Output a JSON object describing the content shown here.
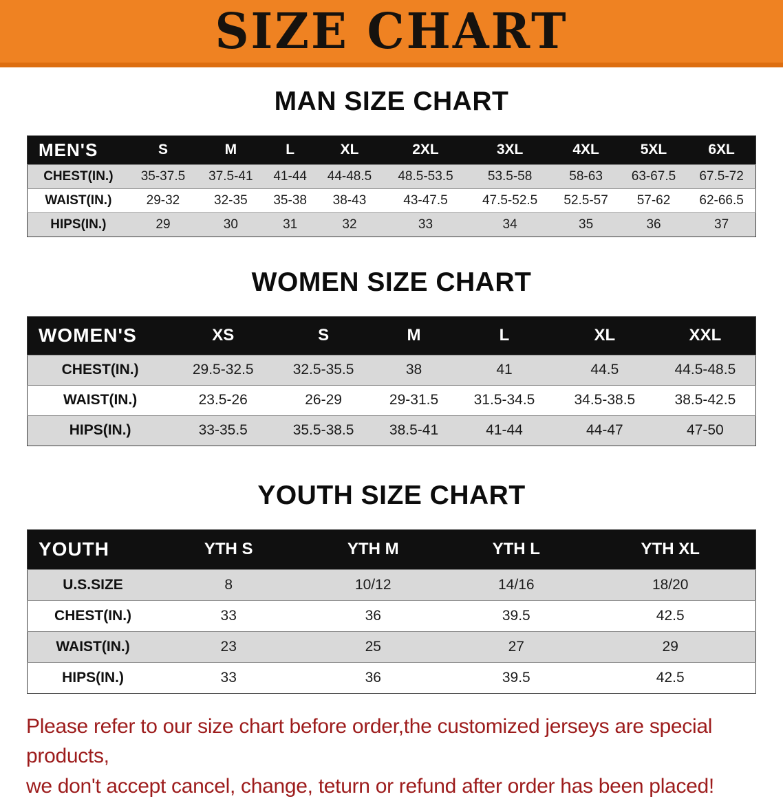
{
  "banner": {
    "title": "SIZE CHART"
  },
  "colors": {
    "banner_bg": "#ef8222",
    "banner_edge": "#dd6e10",
    "table_header_bg": "#101010",
    "row_stripe": "#d9d9d9",
    "notice_text": "#9d1c1c"
  },
  "sections": [
    {
      "id": "men",
      "title": "MAN SIZE CHART",
      "table": {
        "header": [
          "MEN'S",
          "S",
          "M",
          "L",
          "XL",
          "2XL",
          "3XL",
          "4XL",
          "5XL",
          "6XL"
        ],
        "rows": [
          [
            "CHEST(IN.)",
            "35-37.5",
            "37.5-41",
            "41-44",
            "44-48.5",
            "48.5-53.5",
            "53.5-58",
            "58-63",
            "63-67.5",
            "67.5-72"
          ],
          [
            "WAIST(IN.)",
            "29-32",
            "32-35",
            "35-38",
            "38-43",
            "43-47.5",
            "47.5-52.5",
            "52.5-57",
            "57-62",
            "62-66.5"
          ],
          [
            "HIPS(IN.)",
            "29",
            "30",
            "31",
            "32",
            "33",
            "34",
            "35",
            "36",
            "37"
          ]
        ]
      }
    },
    {
      "id": "women",
      "title": "WOMEN SIZE CHART",
      "table": {
        "header": [
          "WOMEN'S",
          "XS",
          "S",
          "M",
          "L",
          "XL",
          "XXL"
        ],
        "rows": [
          [
            "CHEST(IN.)",
            "29.5-32.5",
            "32.5-35.5",
            "38",
            "41",
            "44.5",
            "44.5-48.5"
          ],
          [
            "WAIST(IN.)",
            "23.5-26",
            "26-29",
            "29-31.5",
            "31.5-34.5",
            "34.5-38.5",
            "38.5-42.5"
          ],
          [
            "HIPS(IN.)",
            "33-35.5",
            "35.5-38.5",
            "38.5-41",
            "41-44",
            "44-47",
            "47-50"
          ]
        ]
      }
    },
    {
      "id": "youth",
      "title": "YOUTH SIZE CHART",
      "table": {
        "header": [
          "YOUTH",
          "YTH S",
          "YTH M",
          "YTH L",
          "YTH XL"
        ],
        "rows": [
          [
            "U.S.SIZE",
            "8",
            "10/12",
            "14/16",
            "18/20"
          ],
          [
            "CHEST(IN.)",
            "33",
            "36",
            "39.5",
            "42.5"
          ],
          [
            "WAIST(IN.)",
            "23",
            "25",
            "27",
            "29"
          ],
          [
            "HIPS(IN.)",
            "33",
            "36",
            "39.5",
            "42.5"
          ]
        ]
      }
    }
  ],
  "footer": {
    "lines": [
      "Please refer to our size chart before order,the customized jerseys are special products,",
      "we don't accept cancel, change, teturn or refund after order has been placed!"
    ]
  }
}
